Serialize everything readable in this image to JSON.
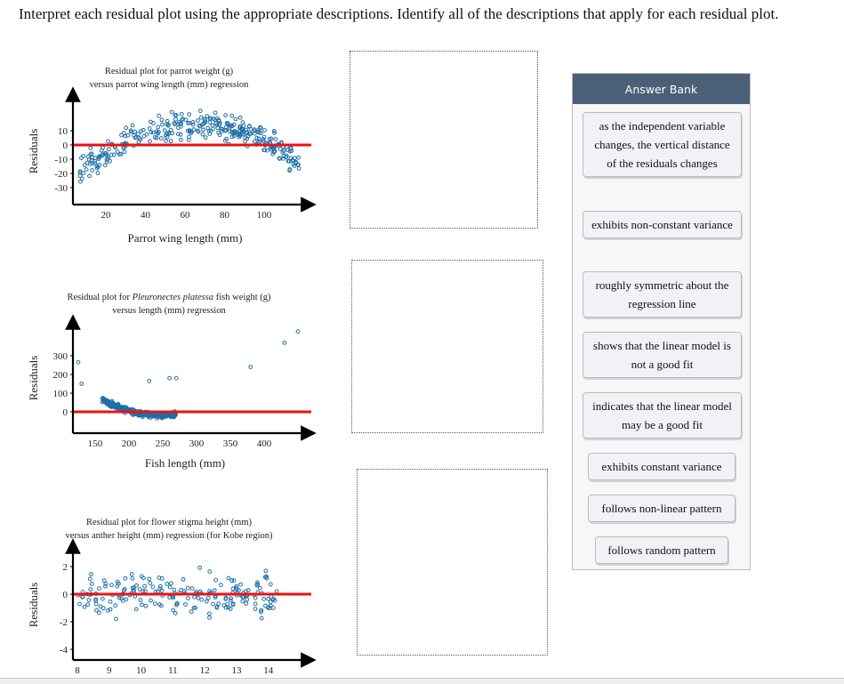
{
  "prompt": "Interpret each residual plot using the appropriate descriptions. Identify all of the descriptions that apply for each residual plot.",
  "plots": [
    {
      "title1": "Residual plot for parrot weight (g)",
      "title2": "versus parrot wing length (mm) regression",
      "ylabel": "Residuals",
      "xlabel": "Parrot wing length (mm)",
      "yticks": [
        "10",
        "0",
        "-10",
        "-20",
        "-30"
      ],
      "xticks": [
        "20",
        "40",
        "60",
        "80",
        "100"
      ],
      "pattern": "arch"
    },
    {
      "title1a": "Residual plot for ",
      "title1i": "Pleuronectes platessa",
      "title1b": " fish weight (g)",
      "title2": "versus length (mm) regression",
      "ylabel": "Residuals",
      "xlabel": "Fish length (mm)",
      "yticks": [
        "300",
        "200",
        "100",
        "0"
      ],
      "xticks": [
        "150",
        "200",
        "250",
        "300",
        "350",
        "400"
      ],
      "pattern": "u-shape"
    },
    {
      "title1": "Residual plot for flower stigma height (mm)",
      "title2": "versus anther height (mm) regression (for Kobe region)",
      "ylabel": "Residuals",
      "xlabel": "",
      "yticks": [
        "2",
        "0",
        "-2",
        "-4"
      ],
      "xticks": [
        "8",
        "9",
        "10",
        "11",
        "12",
        "13",
        "14"
      ],
      "pattern": "random"
    }
  ],
  "answer_bank": {
    "title": "Answer Bank",
    "items": [
      "as the independent variable changes, the vertical distance of the residuals changes",
      "exhibits non-constant variance",
      "roughly symmetric about the regression line",
      "shows that the linear model is not a good fit",
      "indicates that the linear model may be a good fit",
      "exhibits constant variance",
      "follows non-linear pattern",
      "follows random pattern"
    ]
  },
  "colors": {
    "points": "#1f6fa8",
    "regression_line": "#ee1111",
    "bank_header": "#4b5f79"
  }
}
